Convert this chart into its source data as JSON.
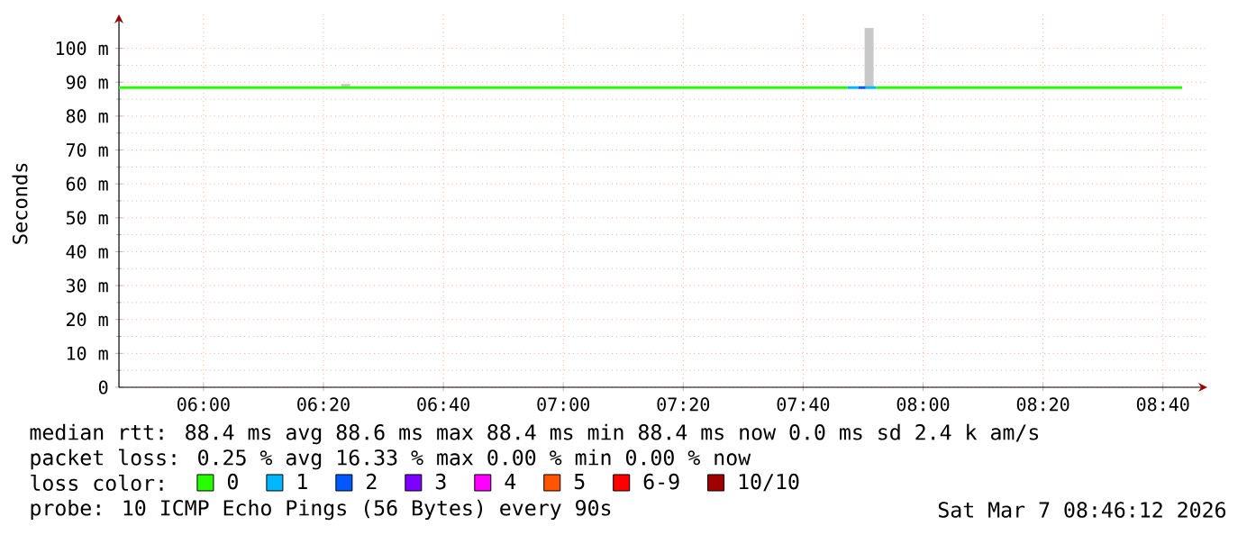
{
  "chart_data": {
    "type": "line",
    "ylabel": "Seconds",
    "xlim": [
      5.765,
      8.79
    ],
    "ylim": [
      0,
      110
    ],
    "xticks": [
      {
        "value": 6,
        "label": "06:00"
      },
      {
        "value": 6.333333,
        "label": "06:20"
      },
      {
        "value": 6.666667,
        "label": "06:40"
      },
      {
        "value": 7,
        "label": "07:00"
      },
      {
        "value": 7.333333,
        "label": "07:20"
      },
      {
        "value": 7.666667,
        "label": "07:40"
      },
      {
        "value": 8,
        "label": "08:00"
      },
      {
        "value": 8.333333,
        "label": "08:20"
      },
      {
        "value": 8.666667,
        "label": "08:40"
      }
    ],
    "yticks": [
      0,
      {
        "value": 10,
        "label": "10 m"
      },
      {
        "value": 20,
        "label": "20 m"
      },
      {
        "value": 30,
        "label": "30 m"
      },
      {
        "value": 40,
        "label": "40 m"
      },
      {
        "value": 50,
        "label": "50 m"
      },
      {
        "value": 60,
        "label": "60 m"
      },
      {
        "value": 70,
        "label": "70 m"
      },
      {
        "value": 80,
        "label": "80 m"
      },
      {
        "value": 90,
        "label": "90 m"
      },
      {
        "value": 100,
        "label": "100 m"
      }
    ],
    "grid": true,
    "legend": "bottom",
    "legend_title": "loss color:",
    "series": [
      {
        "type": "bar",
        "color": "#c8c8c8",
        "x": [
          6.395,
          7.85
        ],
        "base": [
          88.4,
          88.4
        ],
        "values": [
          1.1,
          17.6
        ]
      },
      {
        "name": "0",
        "color": "#26ff00",
        "x": [
          5.765,
          7.79,
          7.83,
          7.87,
          8.72
        ],
        "values": [
          88.4,
          88.4,
          null,
          88.4,
          88.4
        ]
      },
      {
        "name": "1",
        "color": "#00b8ff",
        "x": [
          7.79,
          7.82,
          7.83,
          7.84,
          7.87
        ],
        "values": [
          88.4,
          88.4,
          null,
          88.4,
          88.4
        ]
      },
      {
        "name": "2",
        "color": "#0059ff",
        "x": [
          7.82,
          7.84
        ],
        "values": [
          88.4,
          88.4
        ]
      },
      {
        "name": "3",
        "color": "#7e00ff"
      },
      {
        "name": "4",
        "color": "#ff00ff"
      },
      {
        "name": "5",
        "color": "#ff5500"
      },
      {
        "name": "6-9",
        "color": "#ff0000"
      },
      {
        "name": "10/10",
        "color": "#a10000"
      }
    ],
    "annotations": [
      "median rtt:  88.4 ms avg  88.6 ms max  88.4 ms min  88.4 ms now  0.0 ms sd  2.4 k am/s",
      "packet loss: 0.25 % avg  16.33 % max  0.00 % min  0.00 % now",
      "probe:       10 ICMP Echo Pings (56 Bytes) every 90s",
      "Sat Mar  7 08:46:12 2026"
    ]
  }
}
